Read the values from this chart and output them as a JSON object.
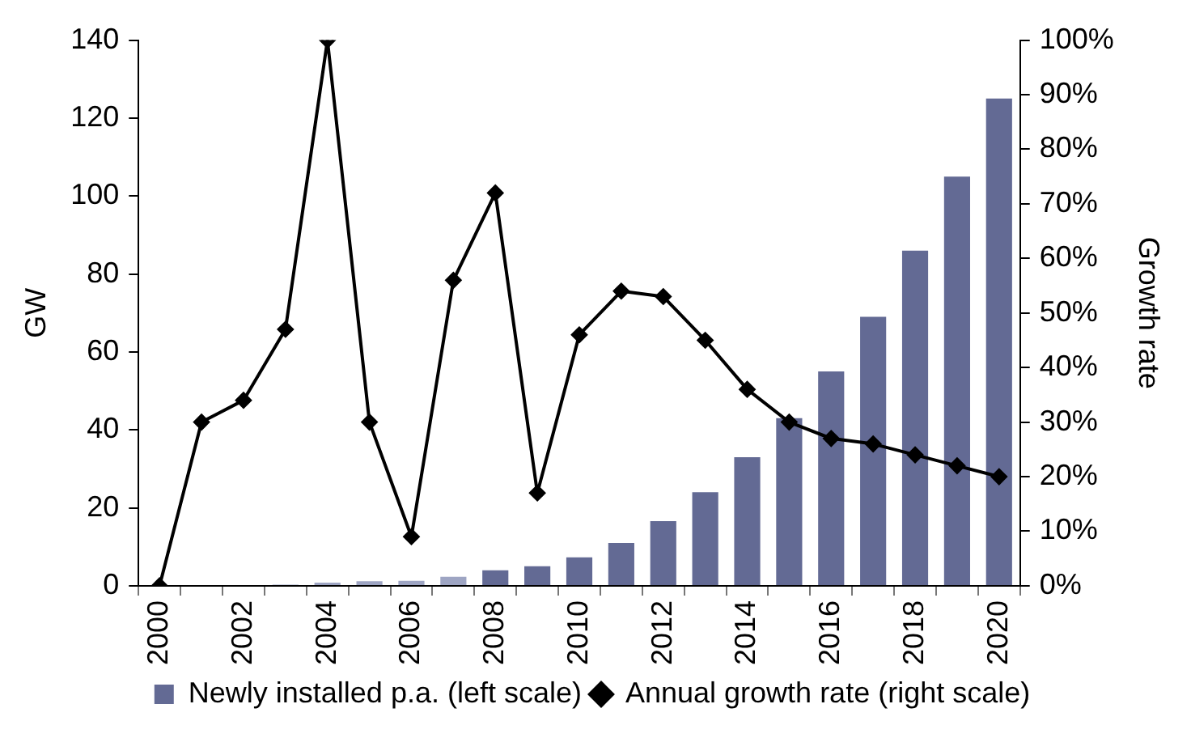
{
  "chart_data": {
    "type": "bar",
    "categories": [
      "2000",
      null,
      "2002",
      null,
      "2004",
      null,
      "2006",
      null,
      "2008",
      null,
      "2010",
      null,
      "2012",
      null,
      "2014",
      null,
      "2016",
      null,
      "2018",
      null,
      "2020"
    ],
    "series": [
      {
        "name": "Newly installed p.a. (left scale)",
        "color": "#636a94",
        "colors": [
          "#9ea5c3",
          "#9ea5c3",
          "#9ea5c3",
          "#9ea5c3",
          "#9ea5c3",
          "#9ea5c3",
          "#9ea5c3",
          "#9ea5c3",
          "#636a94",
          "#636a94",
          "#636a94",
          "#636a94",
          "#636a94",
          "#636a94",
          "#636a94",
          "#636a94",
          "#636a94",
          "#636a94",
          "#636a94",
          "#636a94",
          "#636a94"
        ],
        "values": [
          0,
          0,
          0,
          0.3,
          0.8,
          1.2,
          1.3,
          2.3,
          4,
          5,
          7.3,
          11,
          16.6,
          24,
          33,
          43,
          55,
          69,
          86,
          105,
          125
        ]
      },
      {
        "name": "Annual growth rate (right scale)",
        "type": "line",
        "axis": "y2",
        "color": "#000000",
        "values": [
          0,
          30,
          34,
          47,
          100,
          30,
          9,
          56,
          72,
          17,
          46,
          54,
          53,
          45,
          36,
          30,
          27,
          26,
          24,
          22,
          20
        ]
      }
    ],
    "ylabel": "GW",
    "y2label": "Growth rate",
    "ylim": [
      0,
      140
    ],
    "yticks": [
      0,
      20,
      40,
      60,
      80,
      100,
      120,
      140
    ],
    "y2lim": [
      0,
      100
    ],
    "y2ticks": [
      {
        "value": 0,
        "label": "0%"
      },
      {
        "value": 10,
        "label": "10%"
      },
      {
        "value": 20,
        "label": "20%"
      },
      {
        "value": 30,
        "label": "30%"
      },
      {
        "value": 40,
        "label": "40%"
      },
      {
        "value": 50,
        "label": "50%"
      },
      {
        "value": 60,
        "label": "60%"
      },
      {
        "value": 70,
        "label": "70%"
      },
      {
        "value": 80,
        "label": "80%"
      },
      {
        "value": 90,
        "label": "90%"
      },
      {
        "value": 100,
        "label": "100%"
      }
    ],
    "grid": false,
    "legend": "bottom",
    "marker": "diamond",
    "line_style": "solid"
  }
}
